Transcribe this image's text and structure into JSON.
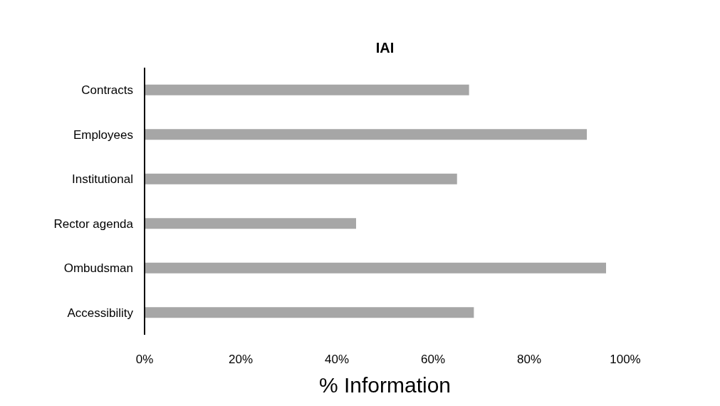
{
  "chart_data": {
    "type": "bar",
    "orientation": "horizontal",
    "title": "IAI",
    "xlabel": "% Information",
    "categories": [
      "Contracts",
      "Employees",
      "Institutional",
      "Rector agenda",
      "Ombudsman",
      "Accessibility"
    ],
    "values": [
      67.5,
      92,
      65,
      44,
      96,
      68.5
    ],
    "color": "#a6a6a6",
    "xlim": [
      0,
      100
    ],
    "xticks": [
      {
        "value": 0,
        "label": "0%"
      },
      {
        "value": 20,
        "label": "20%"
      },
      {
        "value": 40,
        "label": "40%"
      },
      {
        "value": 60,
        "label": "60%"
      },
      {
        "value": 80,
        "label": "80%"
      },
      {
        "value": 100,
        "label": "100%"
      }
    ],
    "grid": false,
    "legend": false
  }
}
